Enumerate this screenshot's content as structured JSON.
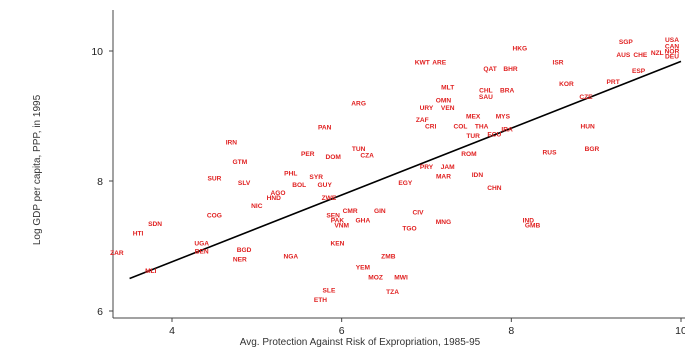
{
  "chart_data": {
    "type": "scatter",
    "title": "",
    "xlabel": "Avg. Protection Against Risk of Expropriation, 1985-95",
    "ylabel": "Log GDP per capita, PPP, in 1995",
    "xlim": [
      3.5,
      10
    ],
    "ylim": [
      5.9,
      10.5
    ],
    "x_ticks": [
      {
        "value": 4,
        "label": "4"
      },
      {
        "value": 6,
        "label": "6"
      },
      {
        "value": 8,
        "label": "8"
      },
      {
        "value": 10,
        "label": "10"
      }
    ],
    "y_ticks": [
      {
        "value": 6,
        "label": "6"
      },
      {
        "value": 8,
        "label": "8"
      },
      {
        "value": 10,
        "label": "10"
      }
    ],
    "marker_color": "#e02020",
    "fit_line": {
      "x": [
        3.5,
        10
      ],
      "y": [
        6.5,
        9.84
      ]
    },
    "points": [
      {
        "label": "HKG",
        "x": 8.1,
        "y": 10.05
      },
      {
        "label": "SGP",
        "x": 9.35,
        "y": 10.15
      },
      {
        "label": "ISR",
        "x": 8.55,
        "y": 9.83
      },
      {
        "label": "KWT",
        "x": 6.95,
        "y": 9.83
      },
      {
        "label": "ARE",
        "x": 7.15,
        "y": 9.83
      },
      {
        "label": "QAT",
        "x": 7.75,
        "y": 9.73
      },
      {
        "label": "BHR",
        "x": 7.99,
        "y": 9.73
      },
      {
        "label": "AUS",
        "x": 9.32,
        "y": 9.95
      },
      {
        "label": "CHE",
        "x": 9.52,
        "y": 9.95
      },
      {
        "label": "NZL",
        "x": 9.72,
        "y": 9.98
      },
      {
        "label": "USA",
        "x": 9.95,
        "y": 10.18
      },
      {
        "label": "CAN",
        "x": 9.97,
        "y": 10.08
      },
      {
        "label": "NOR",
        "x": 9.9,
        "y": 10.0
      },
      {
        "label": "DEU",
        "x": 9.93,
        "y": 9.92
      },
      {
        "label": "ESP",
        "x": 9.5,
        "y": 9.7
      },
      {
        "label": "PRT",
        "x": 9.2,
        "y": 9.53
      },
      {
        "label": "KOR",
        "x": 8.65,
        "y": 9.5
      },
      {
        "label": "CZE",
        "x": 8.88,
        "y": 9.3
      },
      {
        "label": "HUN",
        "x": 8.9,
        "y": 8.85
      },
      {
        "label": "BGR",
        "x": 8.95,
        "y": 8.5
      },
      {
        "label": "RUS",
        "x": 8.45,
        "y": 8.45
      },
      {
        "label": "MLT",
        "x": 7.25,
        "y": 9.45
      },
      {
        "label": "OMN",
        "x": 7.2,
        "y": 9.25
      },
      {
        "label": "URY",
        "x": 7.0,
        "y": 9.13
      },
      {
        "label": "VEN",
        "x": 7.25,
        "y": 9.13
      },
      {
        "label": "SAU",
        "x": 7.7,
        "y": 9.3
      },
      {
        "label": "CHL",
        "x": 7.7,
        "y": 9.4
      },
      {
        "label": "BRA",
        "x": 7.95,
        "y": 9.4
      },
      {
        "label": "ZAF",
        "x": 6.95,
        "y": 8.95
      },
      {
        "label": "CRI",
        "x": 7.05,
        "y": 8.85
      },
      {
        "label": "COL",
        "x": 7.4,
        "y": 8.85
      },
      {
        "label": "MEX",
        "x": 7.55,
        "y": 9.0
      },
      {
        "label": "THA",
        "x": 7.65,
        "y": 8.85
      },
      {
        "label": "MYS",
        "x": 7.9,
        "y": 9.0
      },
      {
        "label": "TUR",
        "x": 7.55,
        "y": 8.7
      },
      {
        "label": "ECU",
        "x": 7.8,
        "y": 8.72
      },
      {
        "label": "IRA",
        "x": 7.95,
        "y": 8.8
      },
      {
        "label": "ARG",
        "x": 6.2,
        "y": 9.2
      },
      {
        "label": "PAN",
        "x": 5.8,
        "y": 8.83
      },
      {
        "label": "IRN",
        "x": 4.7,
        "y": 8.6
      },
      {
        "label": "GTM",
        "x": 4.8,
        "y": 8.3
      },
      {
        "label": "PER",
        "x": 5.6,
        "y": 8.42
      },
      {
        "label": "DOM",
        "x": 5.9,
        "y": 8.38
      },
      {
        "label": "TUN",
        "x": 6.2,
        "y": 8.5
      },
      {
        "label": "CZA",
        "x": 6.3,
        "y": 8.4
      },
      {
        "label": "PHL",
        "x": 5.4,
        "y": 8.12
      },
      {
        "label": "SYR",
        "x": 5.7,
        "y": 8.07
      },
      {
        "label": "BOL",
        "x": 5.5,
        "y": 7.95
      },
      {
        "label": "GUY",
        "x": 5.8,
        "y": 7.95
      },
      {
        "label": "SUR",
        "x": 4.5,
        "y": 8.05
      },
      {
        "label": "SLV",
        "x": 4.85,
        "y": 7.98
      },
      {
        "label": "AGO",
        "x": 5.25,
        "y": 7.82
      },
      {
        "label": "HND",
        "x": 5.2,
        "y": 7.75
      },
      {
        "label": "ZWE",
        "x": 5.85,
        "y": 7.75
      },
      {
        "label": "NIC",
        "x": 5.0,
        "y": 7.62
      },
      {
        "label": "JAM",
        "x": 7.25,
        "y": 8.22
      },
      {
        "label": "PRY",
        "x": 7.0,
        "y": 8.22
      },
      {
        "label": "MAR",
        "x": 7.2,
        "y": 8.08
      },
      {
        "label": "EGY",
        "x": 6.75,
        "y": 7.98
      },
      {
        "label": "ROM",
        "x": 7.5,
        "y": 8.42
      },
      {
        "label": "IDN",
        "x": 7.6,
        "y": 8.1
      },
      {
        "label": "CHN",
        "x": 7.8,
        "y": 7.9
      },
      {
        "label": "COG",
        "x": 4.5,
        "y": 7.48
      },
      {
        "label": "SDN",
        "x": 3.8,
        "y": 7.35
      },
      {
        "label": "HTI",
        "x": 3.6,
        "y": 7.2
      },
      {
        "label": "ZAR",
        "x": 3.35,
        "y": 6.9
      },
      {
        "label": "MLI",
        "x": 3.75,
        "y": 6.62
      },
      {
        "label": "UGA",
        "x": 4.35,
        "y": 7.05
      },
      {
        "label": "BEN",
        "x": 4.35,
        "y": 6.92
      },
      {
        "label": "BGD",
        "x": 4.85,
        "y": 6.95
      },
      {
        "label": "NER",
        "x": 4.8,
        "y": 6.8
      },
      {
        "label": "NGA",
        "x": 5.4,
        "y": 6.85
      },
      {
        "label": "SEN",
        "x": 5.9,
        "y": 7.48
      },
      {
        "label": "PAK",
        "x": 5.95,
        "y": 7.4
      },
      {
        "label": "GHA",
        "x": 6.25,
        "y": 7.4
      },
      {
        "label": "CMR",
        "x": 6.1,
        "y": 7.55
      },
      {
        "label": "GIN",
        "x": 6.45,
        "y": 7.55
      },
      {
        "label": "VNM",
        "x": 6.0,
        "y": 7.32
      },
      {
        "label": "KEN",
        "x": 5.95,
        "y": 7.05
      },
      {
        "label": "CIV",
        "x": 6.9,
        "y": 7.52
      },
      {
        "label": "TGO",
        "x": 6.8,
        "y": 7.28
      },
      {
        "label": "MNG",
        "x": 7.2,
        "y": 7.38
      },
      {
        "label": "IND",
        "x": 8.2,
        "y": 7.4
      },
      {
        "label": "GMB",
        "x": 8.25,
        "y": 7.32
      },
      {
        "label": "ZMB",
        "x": 6.55,
        "y": 6.85
      },
      {
        "label": "YEM",
        "x": 6.25,
        "y": 6.68
      },
      {
        "label": "MOZ",
        "x": 6.4,
        "y": 6.52
      },
      {
        "label": "MWI",
        "x": 6.7,
        "y": 6.52
      },
      {
        "label": "SLE",
        "x": 5.85,
        "y": 6.32
      },
      {
        "label": "ETH",
        "x": 5.75,
        "y": 6.18
      },
      {
        "label": "TZA",
        "x": 6.6,
        "y": 6.3
      }
    ]
  }
}
